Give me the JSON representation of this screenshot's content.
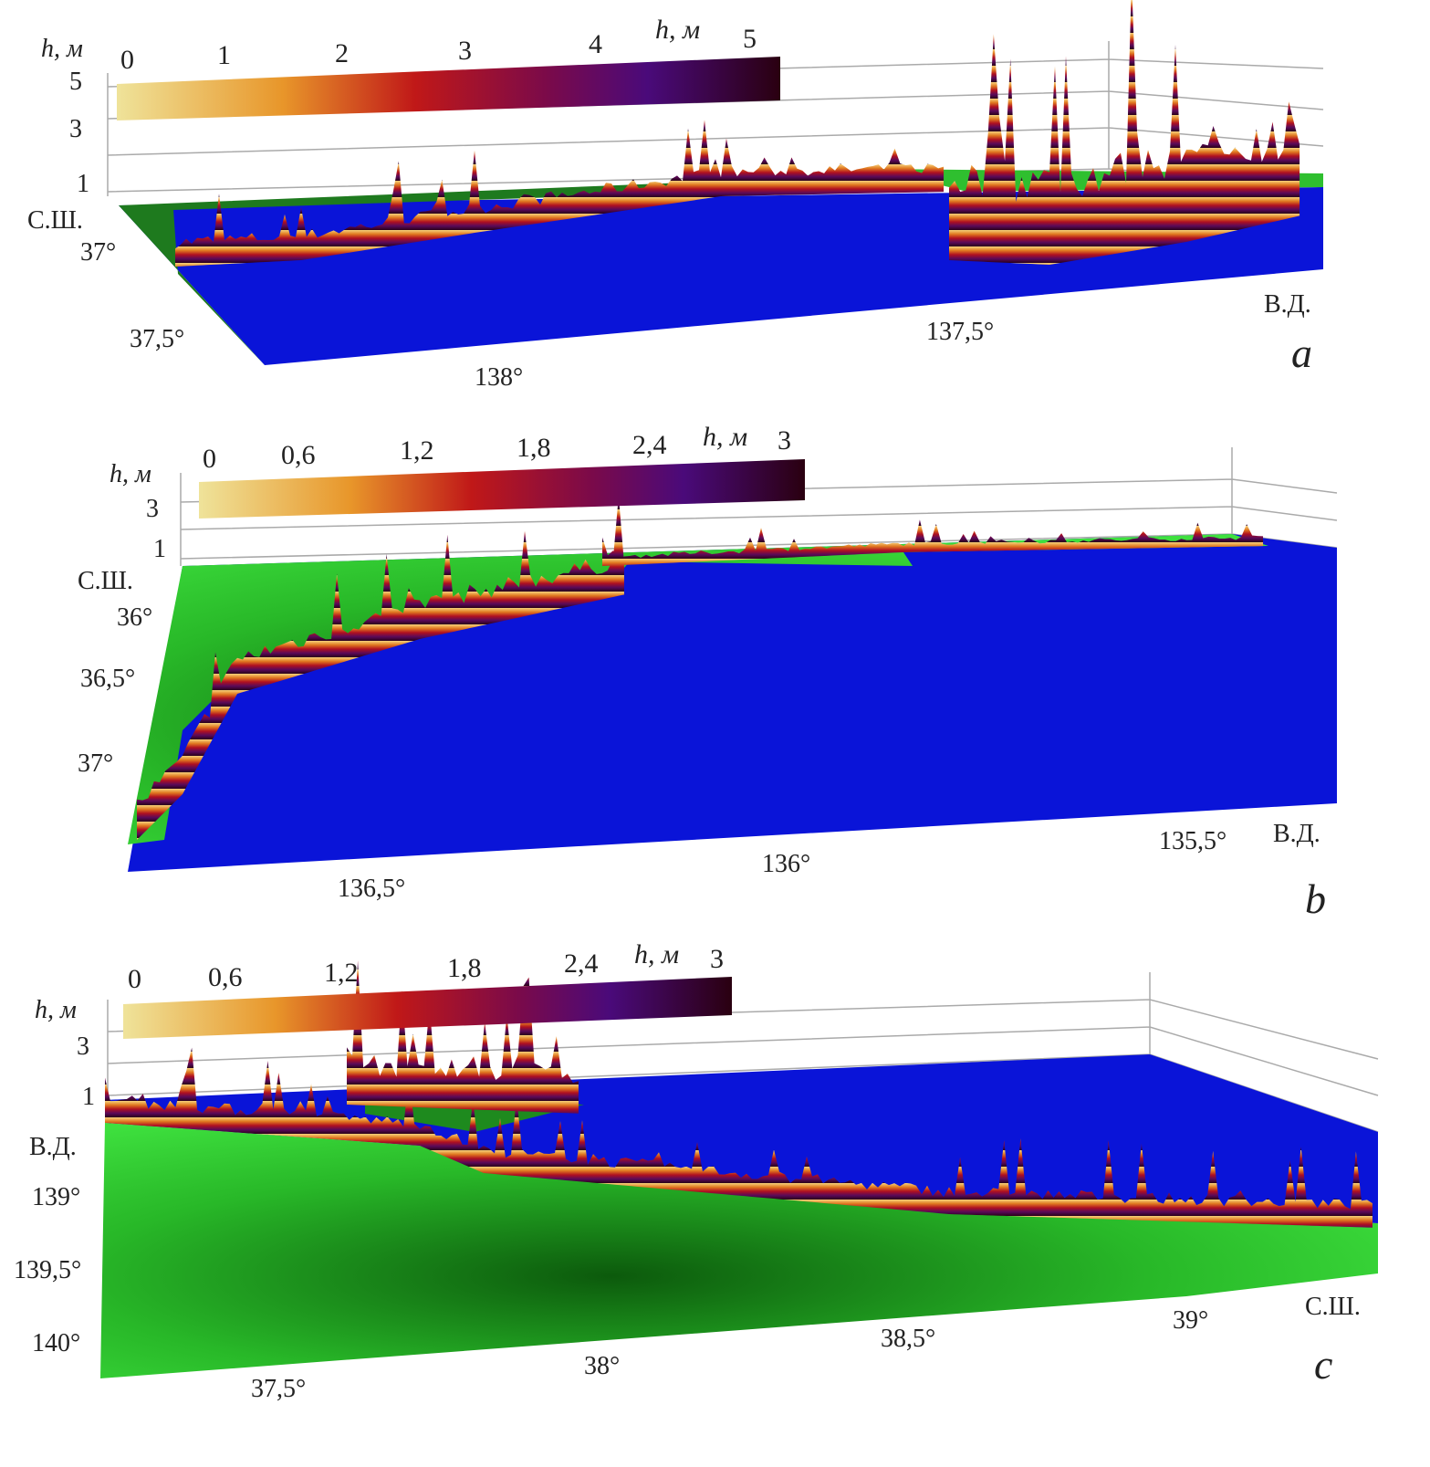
{
  "chart_data": [
    {
      "type": "surface",
      "panel_label": "a",
      "colorbar": {
        "title": "h, м",
        "ticks": [
          "0",
          "1",
          "2",
          "3",
          "4",
          "5"
        ],
        "range": [
          0,
          5
        ]
      },
      "z_axis": {
        "title": "h, м",
        "ticks": [
          "5",
          "3",
          "1"
        ]
      },
      "lat_axis": {
        "title": "С.Ш.",
        "ticks": [
          "37°",
          "37,5°"
        ]
      },
      "lon_axis": {
        "title": "В.Д.",
        "ticks": [
          "138°",
          "137,5°"
        ]
      },
      "max_height_m": 5
    },
    {
      "type": "surface",
      "panel_label": "b",
      "colorbar": {
        "title": "h, м",
        "ticks": [
          "0",
          "0,6",
          "1,2",
          "1,8",
          "2,4",
          "3"
        ],
        "range": [
          0,
          3
        ]
      },
      "z_axis": {
        "title": "h, м",
        "ticks": [
          "3",
          "1"
        ]
      },
      "lat_axis": {
        "title": "С.Ш.",
        "ticks": [
          "36°",
          "36,5°",
          "37°"
        ]
      },
      "lon_axis": {
        "title": "В.Д.",
        "ticks": [
          "136,5°",
          "136°",
          "135,5°"
        ]
      },
      "max_height_m": 3
    },
    {
      "type": "surface",
      "panel_label": "c",
      "colorbar": {
        "title": "h, м",
        "ticks": [
          "0",
          "0,6",
          "1,2",
          "1,8",
          "2,4",
          "3"
        ],
        "range": [
          0,
          3
        ]
      },
      "z_axis": {
        "title": "h, м",
        "ticks": [
          "3",
          "1"
        ]
      },
      "lon_axis": {
        "title": "В.Д.",
        "ticks": [
          "139°",
          "139,5°",
          "140°"
        ]
      },
      "lat_axis": {
        "title": "С.Ш.",
        "ticks": [
          "37,5°",
          "38°",
          "38,5°",
          "39°"
        ]
      },
      "max_height_m": 3
    }
  ],
  "colors": {
    "sea": "#0a14d8",
    "land": "#2fd12f",
    "cmap": [
      "#f2e08a",
      "#e8962a",
      "#c01818",
      "#7a0a4a",
      "#4a0a6a",
      "#2a0010"
    ]
  }
}
